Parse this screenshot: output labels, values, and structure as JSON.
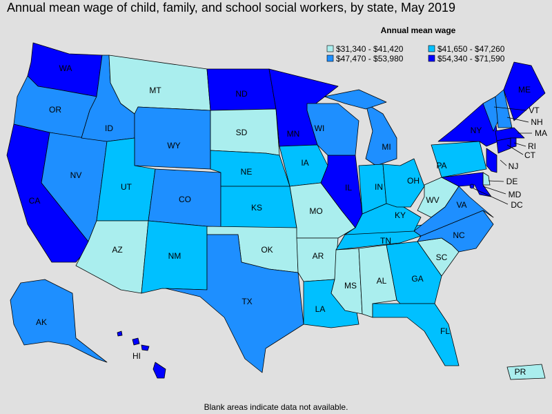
{
  "title": "Annual mean wage of child, family, and school social workers, by state, May 2019",
  "legend": {
    "title": "Annual mean wage",
    "items": [
      {
        "label": "$31,340 - $41,420",
        "color": "#aaeeee"
      },
      {
        "label": "$41,650 - $47,260",
        "color": "#00c0ff"
      },
      {
        "label": "$47,470 - $53,980",
        "color": "#1e8fff"
      },
      {
        "label": "$54,340 - $71,590",
        "color": "#0000ff"
      }
    ]
  },
  "states": [
    {
      "label": "WA",
      "color": "#0000ff"
    },
    {
      "label": "OR",
      "color": "#1e8fff"
    },
    {
      "label": "CA",
      "color": "#0000ff"
    },
    {
      "label": "NV",
      "color": "#1e8fff"
    },
    {
      "label": "ID",
      "color": "#1e8fff"
    },
    {
      "label": "MT",
      "color": "#aaeeee"
    },
    {
      "label": "WY",
      "color": "#1e8fff"
    },
    {
      "label": "UT",
      "color": "#00c0ff"
    },
    {
      "label": "AZ",
      "color": "#aaeeee"
    },
    {
      "label": "CO",
      "color": "#1e8fff"
    },
    {
      "label": "NM",
      "color": "#00c0ff"
    },
    {
      "label": "ND",
      "color": "#0000ff"
    },
    {
      "label": "SD",
      "color": "#aaeeee"
    },
    {
      "label": "NE",
      "color": "#00c0ff"
    },
    {
      "label": "KS",
      "color": "#00c0ff"
    },
    {
      "label": "OK",
      "color": "#aaeeee"
    },
    {
      "label": "TX",
      "color": "#1e8fff"
    },
    {
      "label": "MN",
      "color": "#0000ff"
    },
    {
      "label": "IA",
      "color": "#00c0ff"
    },
    {
      "label": "MO",
      "color": "#aaeeee"
    },
    {
      "label": "AR",
      "color": "#aaeeee"
    },
    {
      "label": "LA",
      "color": "#00c0ff"
    },
    {
      "label": "MS",
      "color": "#aaeeee"
    },
    {
      "label": "AL",
      "color": "#aaeeee"
    },
    {
      "label": "GA",
      "color": "#00c0ff"
    },
    {
      "label": "FL",
      "color": "#00c0ff"
    },
    {
      "label": "SC",
      "color": "#aaeeee"
    },
    {
      "label": "NC",
      "color": "#1e8fff"
    },
    {
      "label": "TN",
      "color": "#00c0ff"
    },
    {
      "label": "KY",
      "color": "#00c0ff"
    },
    {
      "label": "IL",
      "color": "#0000ff"
    },
    {
      "label": "WI",
      "color": "#1e8fff"
    },
    {
      "label": "MI",
      "color": "#1e8fff"
    },
    {
      "label": "IN",
      "color": "#00c0ff"
    },
    {
      "label": "OH",
      "color": "#00c0ff"
    },
    {
      "label": "WV",
      "color": "#aaeeee"
    },
    {
      "label": "VA",
      "color": "#1e8fff"
    },
    {
      "label": "PA",
      "color": "#00c0ff"
    },
    {
      "label": "NY",
      "color": "#0000ff"
    },
    {
      "label": "NJ",
      "color": "#0000ff"
    },
    {
      "label": "DE",
      "color": "#aaeeee"
    },
    {
      "label": "MD",
      "color": "#0000ff"
    },
    {
      "label": "DC",
      "color": "#0000ff"
    },
    {
      "label": "VT",
      "color": "#1e8fff"
    },
    {
      "label": "NH",
      "color": "#1e8fff"
    },
    {
      "label": "ME",
      "color": "#0000ff"
    },
    {
      "label": "MA",
      "color": "#0000ff"
    },
    {
      "label": "CT",
      "color": "#0000ff"
    },
    {
      "label": "RI",
      "color": "#0000ff"
    },
    {
      "label": "AK",
      "color": "#1e8fff"
    },
    {
      "label": "HI",
      "color": "#0000ff"
    },
    {
      "label": "PR",
      "color": "#aaeeee"
    }
  ],
  "footnote": "Blank areas indicate data not available."
}
